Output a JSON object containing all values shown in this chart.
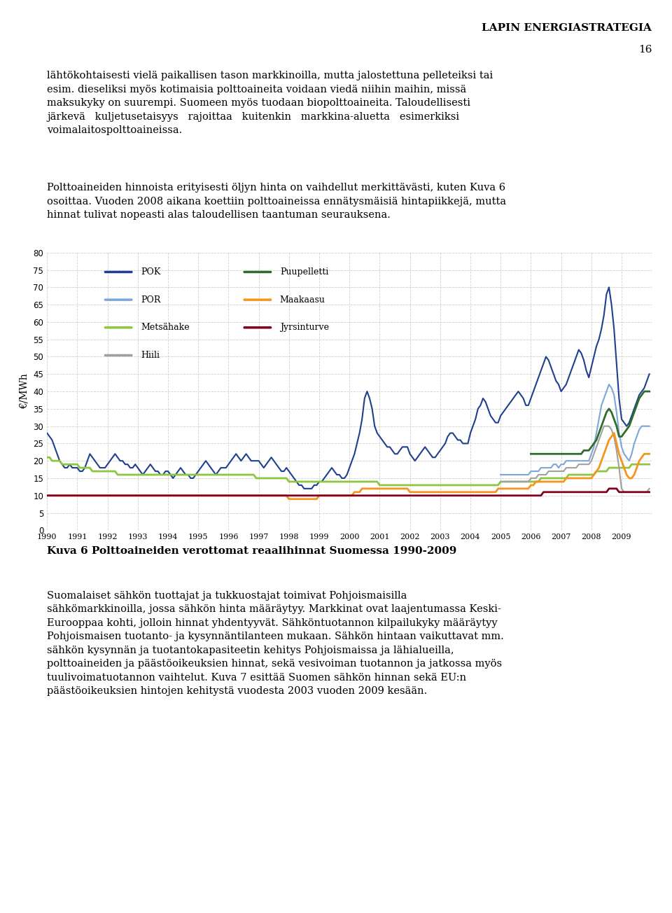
{
  "title_header": "LAPIN ENERGIASTRATEGIA",
  "page_number": "16",
  "ylabel": "€/MWh",
  "xlabel_caption": "Kuva 6 Polttoaineiden verottomat reaalihinnat Suomessa 1990-2009",
  "ylim": [
    0,
    80
  ],
  "yticks": [
    0,
    5,
    10,
    15,
    20,
    25,
    30,
    35,
    40,
    45,
    50,
    55,
    60,
    65,
    70,
    75,
    80
  ],
  "series": {
    "POK": {
      "color": "#1F3F8F",
      "linewidth": 1.5
    },
    "POR": {
      "color": "#7BA7D8",
      "linewidth": 1.5
    },
    "Metsahake": {
      "color": "#8DC63F",
      "linewidth": 2.0
    },
    "Hiili": {
      "color": "#A0A0A0",
      "linewidth": 1.5
    },
    "Puupelletti": {
      "color": "#2D6E2D",
      "linewidth": 2.0
    },
    "Maakaasu": {
      "color": "#F7941D",
      "linewidth": 2.0
    },
    "Jyrsinturve": {
      "color": "#800020",
      "linewidth": 2.0
    }
  },
  "background_color": "#FFFFFF",
  "grid_color": "#CCCCCC",
  "text_color": "#000000"
}
